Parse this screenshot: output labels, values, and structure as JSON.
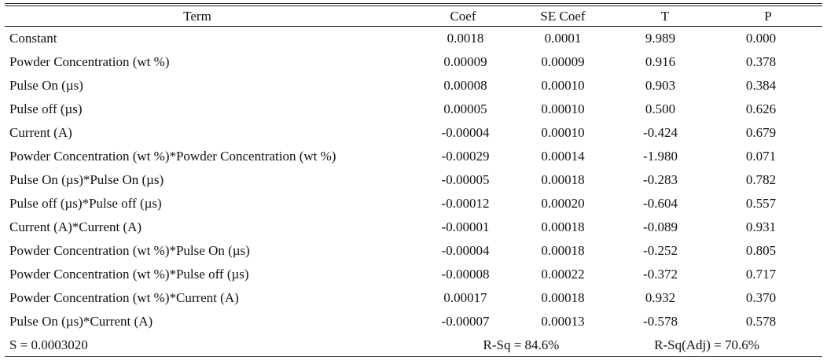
{
  "columns": {
    "term": "Term",
    "coef": "Coef",
    "se_coef": "SE Coef",
    "t": "T",
    "p": "P"
  },
  "rows": [
    {
      "term": "Constant",
      "coef": "0.0018",
      "se_coef": "0.0001",
      "t": "9.989",
      "p": "0.000"
    },
    {
      "term": "Powder Concentration (wt %)",
      "coef": "0.00009",
      "se_coef": "0.00009",
      "t": "0.916",
      "p": "0.378"
    },
    {
      "term": "Pulse On (µs)",
      "coef": "0.00008",
      "se_coef": "0.00010",
      "t": "0.903",
      "p": "0.384"
    },
    {
      "term": "Pulse off (µs)",
      "coef": "0.00005",
      "se_coef": "0.00010",
      "t": "0.500",
      "p": "0.626"
    },
    {
      "term": "Current (A)",
      "coef": "-0.00004",
      "se_coef": "0.00010",
      "t": "-0.424",
      "p": "0.679"
    },
    {
      "term": "Powder Concentration (wt %)*Powder Concentration (wt %)",
      "coef": "-0.00029",
      "se_coef": "0.00014",
      "t": "-1.980",
      "p": "0.071"
    },
    {
      "term": "Pulse On (µs)*Pulse On (µs)",
      "coef": "-0.00005",
      "se_coef": "0.00018",
      "t": "-0.283",
      "p": "0.782"
    },
    {
      "term": "Pulse off (µs)*Pulse off (µs)",
      "coef": "-0.00012",
      "se_coef": "0.00020",
      "t": "-0.604",
      "p": "0.557"
    },
    {
      "term": "Current (A)*Current (A)",
      "coef": "-0.00001",
      "se_coef": "0.00018",
      "t": "-0.089",
      "p": "0.931"
    },
    {
      "term": "Powder Concentration (wt %)*Pulse On (µs)",
      "coef": "-0.00004",
      "se_coef": "0.00018",
      "t": "-0.252",
      "p": "0.805"
    },
    {
      "term": "Powder Concentration (wt %)*Pulse off (µs)",
      "coef": "-0.00008",
      "se_coef": "0.00022",
      "t": "-0.372",
      "p": "0.717"
    },
    {
      "term": "Powder Concentration (wt %)*Current (A)",
      "coef": "0.00017",
      "se_coef": "0.00018",
      "t": "0.932",
      "p": "0.370"
    },
    {
      "term": "Pulse On (µs)*Current (A)",
      "coef": "-0.00007",
      "se_coef": "0.00013",
      "t": "-0.578",
      "p": "0.578"
    }
  ],
  "summary": {
    "s": "S = 0.0003020",
    "r_sq": "R-Sq = 84.6%",
    "r_sq_adj": "R-Sq(Adj) = 70.6%"
  }
}
